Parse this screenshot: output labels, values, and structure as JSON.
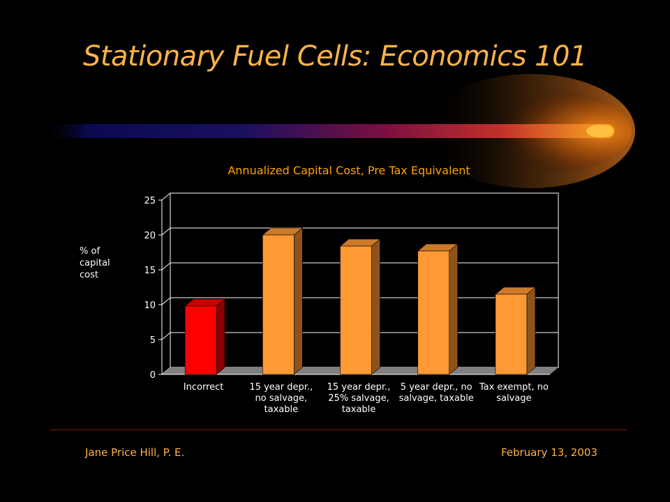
{
  "slide": {
    "title": "Stationary Fuel Cells:  Economics 101",
    "footer_left": "Jane Price Hill, P. E.",
    "footer_right": "February 13, 2003"
  },
  "colors": {
    "background": "#000000",
    "title": "#FFB347",
    "bar_default": "#FF9933",
    "bar_highlight": "#FF0000",
    "chart_title": "#FFA500",
    "floor": "#808080"
  },
  "chart_data": {
    "type": "bar",
    "title": "Annualized Capital Cost, Pre Tax Equivalent",
    "ylabel": "% of capital cost",
    "ylim": [
      0,
      25
    ],
    "yticks": [
      0,
      5,
      10,
      15,
      20,
      25
    ],
    "grid": true,
    "three_d": true,
    "categories": [
      "Incorrect",
      "15 year depr., no salvage, taxable",
      "15 year depr., 25% salvage, taxable",
      "5 year depr., no salvage, taxable",
      "Tax exempt, no salvage"
    ],
    "category_lines": [
      [
        "Incorrect"
      ],
      [
        "15 year depr.,",
        "no salvage,",
        "taxable"
      ],
      [
        "15 year depr.,",
        "25% salvage,",
        "taxable"
      ],
      [
        "5 year depr., no",
        "salvage, taxable"
      ],
      [
        "Tax exempt, no",
        "salvage"
      ]
    ],
    "ylabel_lines": [
      "% of",
      "capital",
      "cost"
    ],
    "values": [
      9.8,
      20.0,
      18.4,
      17.7,
      11.5
    ],
    "highlight_index": 0
  }
}
